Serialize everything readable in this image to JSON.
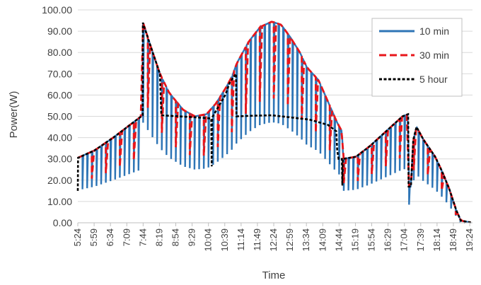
{
  "chart_data": {
    "type": "line",
    "xlabel": "Time",
    "ylabel": "Power(W)",
    "ylim": [
      0,
      100
    ],
    "y_ticks": [
      "0.00",
      "10.00",
      "20.00",
      "30.00",
      "40.00",
      "50.00",
      "60.00",
      "70.00",
      "80.00",
      "90.00",
      "100.00"
    ],
    "x_ticks": [
      "5:24",
      "5:59",
      "6:34",
      "7:09",
      "7:44",
      "8:19",
      "8:54",
      "9:29",
      "10:04",
      "10:39",
      "11:14",
      "11:49",
      "12:24",
      "12:59",
      "13:34",
      "14:09",
      "14:44",
      "15:19",
      "15:54",
      "16:29",
      "17:04",
      "17:39",
      "18:14",
      "18:49",
      "19:24"
    ],
    "x_range_minutes": [
      324,
      1170
    ],
    "grid": "horizontal",
    "legend_position": "top-right",
    "irradiance_profile": [
      [
        324,
        30.5
      ],
      [
        360,
        34
      ],
      [
        400,
        40
      ],
      [
        430,
        45
      ],
      [
        463,
        50.5
      ],
      [
        464,
        94
      ],
      [
        480,
        83
      ],
      [
        500,
        70
      ],
      [
        520,
        61
      ],
      [
        550,
        53
      ],
      [
        575,
        50
      ],
      [
        600,
        51
      ],
      [
        620,
        56
      ],
      [
        643,
        64
      ],
      [
        655,
        69
      ],
      [
        665,
        75
      ],
      [
        690,
        85
      ],
      [
        715,
        92
      ],
      [
        740,
        94.5
      ],
      [
        760,
        93
      ],
      [
        780,
        87
      ],
      [
        800,
        80
      ],
      [
        815,
        73
      ],
      [
        840,
        67
      ],
      [
        860,
        57
      ],
      [
        880,
        47
      ],
      [
        890,
        43
      ],
      [
        893,
        30
      ],
      [
        920,
        31
      ],
      [
        950,
        36
      ],
      [
        990,
        44
      ],
      [
        1020,
        50
      ],
      [
        1032,
        51
      ],
      [
        1033,
        17
      ],
      [
        1038,
        17
      ],
      [
        1043,
        39
      ],
      [
        1050,
        45
      ],
      [
        1065,
        39
      ],
      [
        1090,
        31
      ],
      [
        1105,
        24
      ],
      [
        1120,
        16
      ],
      [
        1135,
        6
      ],
      [
        1145,
        1
      ],
      [
        1170,
        0
      ]
    ],
    "series": [
      {
        "name": "10 min",
        "color": "#2E75B6",
        "style": "solid",
        "period_min": 10,
        "dip_ratio": 0.5
      },
      {
        "name": "30 min",
        "color": "#E8161B",
        "style": "dashed",
        "period_min": 30,
        "dip_ratio": 0.62
      },
      {
        "name": "5 hour",
        "color": "#000000",
        "style": "dotted"
      }
    ],
    "five_hour_points": [
      [
        324,
        15
      ],
      [
        324.5,
        30.5
      ],
      [
        360,
        34
      ],
      [
        400,
        40
      ],
      [
        430,
        45
      ],
      [
        463,
        50.5
      ],
      [
        463.5,
        94
      ],
      [
        480,
        83
      ],
      [
        500,
        70
      ],
      [
        503,
        50.5
      ],
      [
        540,
        50
      ],
      [
        580,
        49.5
      ],
      [
        610,
        49
      ],
      [
        611,
        26.5
      ],
      [
        612,
        49.5
      ],
      [
        640,
        60
      ],
      [
        650,
        66
      ],
      [
        663,
        70
      ],
      [
        664,
        50
      ],
      [
        700,
        50.3
      ],
      [
        740,
        50.5
      ],
      [
        780,
        49.5
      ],
      [
        820,
        48.5
      ],
      [
        860,
        46
      ],
      [
        878,
        43
      ],
      [
        880,
        34
      ],
      [
        883,
        30
      ],
      [
        890,
        30
      ],
      [
        891,
        17.5
      ],
      [
        892,
        30
      ],
      [
        920,
        31
      ],
      [
        950,
        36
      ],
      [
        990,
        44
      ],
      [
        1020,
        50
      ],
      [
        1032,
        51
      ],
      [
        1033,
        17
      ],
      [
        1038,
        17
      ],
      [
        1043,
        39
      ],
      [
        1050,
        45
      ],
      [
        1065,
        39
      ],
      [
        1090,
        31
      ],
      [
        1105,
        24
      ],
      [
        1120,
        16
      ],
      [
        1135,
        6
      ],
      [
        1145,
        1
      ],
      [
        1170,
        0
      ]
    ]
  }
}
